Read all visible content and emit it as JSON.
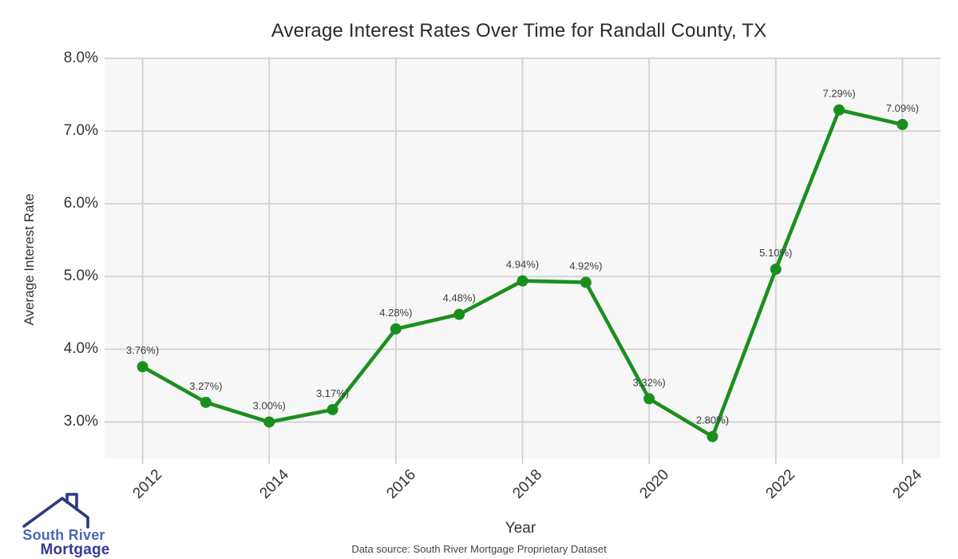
{
  "chart_data": {
    "type": "line",
    "title": "Average Interest Rates Over Time for Randall County, TX",
    "xlabel": "Year",
    "ylabel": "Average Interest Rate",
    "source_note": "Data source: South River Mortgage Proprietary Dataset",
    "x": [
      2012,
      2013,
      2014,
      2015,
      2016,
      2017,
      2018,
      2019,
      2020,
      2021,
      2022,
      2023,
      2024
    ],
    "series": [
      {
        "name": "Average Interest Rate",
        "values": [
          3.76,
          3.27,
          3.0,
          3.17,
          4.28,
          4.48,
          4.94,
          4.92,
          3.32,
          2.8,
          5.1,
          7.29,
          7.09
        ],
        "point_labels": [
          "3.76%)",
          "3.27%)",
          "3.00%)",
          "3.17%)",
          "4.28%)",
          "4.48%)",
          "4.94%)",
          "4.92%)",
          "3.32%)",
          "2.80%)",
          "5.10%)",
          "7.29%)",
          "7.09%)"
        ],
        "color": "#1b8f1e",
        "marker": "circle"
      }
    ],
    "xlim": [
      2011.4,
      2024.6
    ],
    "ylim": [
      2.5,
      8.0
    ],
    "x_ticks": [
      {
        "value": 2012,
        "label": "2012"
      },
      {
        "value": 2014,
        "label": "2014"
      },
      {
        "value": 2016,
        "label": "2016"
      },
      {
        "value": 2018,
        "label": "2018"
      },
      {
        "value": 2020,
        "label": "2020"
      },
      {
        "value": 2022,
        "label": "2022"
      },
      {
        "value": 2024,
        "label": "2024"
      }
    ],
    "y_ticks": [
      {
        "value": 8.0,
        "label": "8.0%"
      },
      {
        "value": 7.0,
        "label": "7.0%"
      },
      {
        "value": 6.0,
        "label": "6.0%"
      },
      {
        "value": 5.0,
        "label": "5.0%"
      },
      {
        "value": 4.0,
        "label": "4.0%"
      },
      {
        "value": 3.0,
        "label": "3.0%"
      }
    ],
    "grid": true,
    "legend_position": "none",
    "plot_bg": "#f7f7f7",
    "grid_color": "#d2d2d2",
    "tick_mark_color": "#c8c8c8",
    "tick_label_color": "#333333",
    "point_label_color": "#3d3d3d"
  },
  "logo": {
    "line1": "South River",
    "line2": "Mortgage",
    "line1_color": "#4a68b0",
    "line2_color": "#353b94",
    "icon": "house-roof-with-chimney",
    "icon_color": "#2c3a80"
  }
}
